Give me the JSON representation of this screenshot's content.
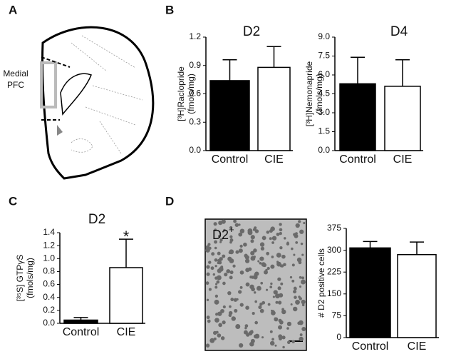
{
  "panel_labels": [
    "A",
    "B",
    "C",
    "D"
  ],
  "brain_label": [
    "Medial",
    "PFC"
  ],
  "image_label": {
    "text": "D2",
    "sup": "+"
  },
  "chart_data": [
    {
      "type": "bar",
      "title": "D2",
      "y_label": [
        "[³H]Raclopride",
        "(fmols/mg)"
      ],
      "categories": [
        "Control",
        "CIE"
      ],
      "values": [
        0.74,
        0.88
      ],
      "errors": [
        0.22,
        0.22
      ],
      "colors": [
        "#000000",
        "#ffffff"
      ],
      "ylim": [
        0,
        1.2
      ],
      "yticks": [
        {
          "value": 0,
          "label": "0.0"
        },
        0.3,
        0.6,
        0.9,
        1.2
      ]
    },
    {
      "type": "bar",
      "title": "D4",
      "y_label": [
        "[³H]Nemonapride",
        "(fmols/mg)"
      ],
      "categories": [
        "Control",
        "CIE"
      ],
      "values": [
        5.3,
        5.1
      ],
      "errors": [
        2.1,
        2.1
      ],
      "colors": [
        "#000000",
        "#ffffff"
      ],
      "ylim": [
        0,
        9
      ],
      "yticks": [
        {
          "value": 0,
          "label": "0.0"
        },
        1.5,
        {
          "value": 3,
          "label": "3.0"
        },
        4.5,
        {
          "value": 6,
          "label": "6.0"
        },
        7.5,
        {
          "value": 9,
          "label": "9.0"
        }
      ]
    },
    {
      "type": "bar",
      "title": "D2",
      "annotation": "*",
      "y_label": [
        "[³⁵S] GTPγS",
        "(fmols/mg)"
      ],
      "categories": [
        "Control",
        "CIE"
      ],
      "values": [
        0.05,
        0.86
      ],
      "errors": [
        0.04,
        0.44
      ],
      "colors": [
        "#000000",
        "#ffffff"
      ],
      "ylim": [
        0,
        1.4
      ],
      "yticks": [
        {
          "value": 0,
          "label": "0.0"
        },
        0.2,
        0.4,
        0.6,
        0.8,
        {
          "value": 1,
          "label": "1.0"
        },
        1.2,
        1.4
      ]
    },
    {
      "type": "bar",
      "y_label": [
        "# D2 positive cells"
      ],
      "categories": [
        "Control",
        "CIE"
      ],
      "values": [
        308,
        285
      ],
      "errors": [
        22,
        43
      ],
      "colors": [
        "#000000",
        "#ffffff"
      ],
      "ylim": [
        0,
        375
      ],
      "yticks": [
        0,
        75,
        150,
        225,
        300,
        375
      ]
    }
  ]
}
